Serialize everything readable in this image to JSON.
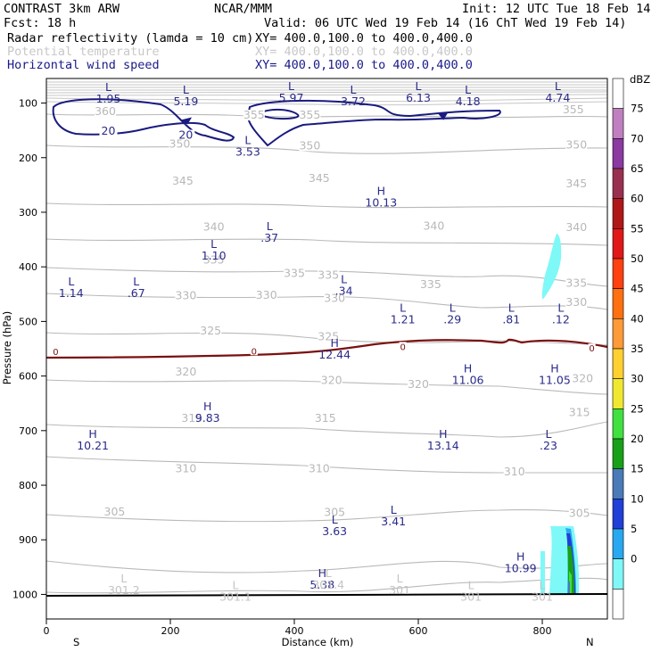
{
  "header": {
    "experiment": "CONTRAST  3km ARW",
    "center": "NCAR/MMM",
    "init": "Init: 12 UTC Tue 18 Feb 14",
    "fcst": "Fcst:    18 h",
    "valid": "Valid: 06 UTC Wed 19 Feb 14 (16 ChT Wed 19 Feb 14)",
    "fields": [
      {
        "name": "Radar reflectivity (lamda = 10 cm)",
        "xy": "XY= 400.0,100.0 to 400.0,400.0",
        "color": "#000000"
      },
      {
        "name": "Potential temperature",
        "xy": "XY= 400.0,100.0 to 400.0,400.0",
        "color": "#c8c8c8"
      },
      {
        "name": "Horizontal wind speed",
        "xy": "XY= 400.0,100.0 to 400.0,400.0",
        "color": "#1a1a8a"
      }
    ]
  },
  "chart_data": {
    "type": "cross-section",
    "xlabel": "Distance (km)",
    "ylabel": "Pressure (hPa)",
    "xlim": [
      0,
      905
    ],
    "ylim": [
      1045,
      55
    ],
    "x_ticks": [
      0,
      200,
      400,
      600,
      800
    ],
    "y_ticks": [
      100,
      200,
      300,
      400,
      500,
      600,
      700,
      800,
      900,
      1000
    ],
    "x_end_labels": {
      "left": "S",
      "right": "N"
    },
    "colorbar": {
      "unit": "dBZ",
      "levels": [
        "75",
        "70",
        "65",
        "60",
        "55",
        "50",
        "45",
        "40",
        "35",
        "30",
        "25",
        "20",
        "15",
        "10",
        "5",
        "0"
      ],
      "colors": [
        "#ffffff",
        "#c080c0",
        "#8a3aa0",
        "#9a3050",
        "#b01818",
        "#e01818",
        "#ff4010",
        "#ff7010",
        "#ff9a38",
        "#ffd030",
        "#f0e830",
        "#40e040",
        "#18a018",
        "#4a7ab8",
        "#2040d8",
        "#28a8f0",
        "#7ff8f8",
        "#ffffff"
      ]
    },
    "theta_levels": [
      {
        "label": "360",
        "x": 95,
        "p": 120
      },
      {
        "label": "355",
        "x": 335,
        "p": 127
      },
      {
        "label": "355",
        "x": 425,
        "p": 127
      },
      {
        "label": "355",
        "x": 850,
        "p": 117
      },
      {
        "label": "350",
        "x": 215,
        "p": 180
      },
      {
        "label": "350",
        "x": 425,
        "p": 183
      },
      {
        "label": "350",
        "x": 855,
        "p": 182
      },
      {
        "label": "345",
        "x": 220,
        "p": 248
      },
      {
        "label": "345",
        "x": 440,
        "p": 243
      },
      {
        "label": "345",
        "x": 855,
        "p": 253
      },
      {
        "label": "340",
        "x": 270,
        "p": 332
      },
      {
        "label": "340",
        "x": 625,
        "p": 330
      },
      {
        "label": "340",
        "x": 855,
        "p": 333
      },
      {
        "label": "335",
        "x": 270,
        "p": 392
      },
      {
        "label": "335",
        "x": 400,
        "p": 417
      },
      {
        "label": "335",
        "x": 455,
        "p": 420
      },
      {
        "label": "335",
        "x": 620,
        "p": 437
      },
      {
        "label": "335",
        "x": 855,
        "p": 435
      },
      {
        "label": "330",
        "x": 225,
        "p": 458
      },
      {
        "label": "330",
        "x": 355,
        "p": 457
      },
      {
        "label": "330",
        "x": 465,
        "p": 463
      },
      {
        "label": "330",
        "x": 855,
        "p": 470
      },
      {
        "label": "325",
        "x": 265,
        "p": 522
      },
      {
        "label": "325",
        "x": 455,
        "p": 533
      },
      {
        "label": "320",
        "x": 225,
        "p": 597
      },
      {
        "label": "320",
        "x": 460,
        "p": 613
      },
      {
        "label": "320",
        "x": 600,
        "p": 620
      },
      {
        "label": "320",
        "x": 865,
        "p": 610
      },
      {
        "label": "315",
        "x": 235,
        "p": 682
      },
      {
        "label": "315",
        "x": 450,
        "p": 682
      },
      {
        "label": "315",
        "x": 860,
        "p": 672
      },
      {
        "label": "310",
        "x": 225,
        "p": 775
      },
      {
        "label": "310",
        "x": 440,
        "p": 775
      },
      {
        "label": "310",
        "x": 755,
        "p": 780
      },
      {
        "label": "305",
        "x": 110,
        "p": 854
      },
      {
        "label": "305",
        "x": 465,
        "p": 855
      },
      {
        "label": "305",
        "x": 860,
        "p": 856
      }
    ],
    "wind_contours": [
      {
        "label": "20",
        "x": 100,
        "p": 155
      },
      {
        "label": "20",
        "x": 225,
        "p": 162
      }
    ],
    "freezing_level_label": "0",
    "extrema": [
      {
        "kind": "L",
        "value": "1.95",
        "x": 100,
        "p": 78,
        "field": "wind"
      },
      {
        "kind": "L",
        "value": "5.19",
        "x": 225,
        "p": 83,
        "field": "wind"
      },
      {
        "kind": "L",
        "value": "5.97",
        "x": 395,
        "p": 76,
        "field": "wind"
      },
      {
        "kind": "L",
        "value": "3.72",
        "x": 495,
        "p": 83,
        "field": "wind"
      },
      {
        "kind": "L",
        "value": "6.13",
        "x": 600,
        "p": 76,
        "field": "wind"
      },
      {
        "kind": "L",
        "value": "4.18",
        "x": 680,
        "p": 83,
        "field": "wind"
      },
      {
        "kind": "L",
        "value": "4.74",
        "x": 825,
        "p": 76,
        "field": "wind"
      },
      {
        "kind": "L",
        "value": "3.53",
        "x": 325,
        "p": 175,
        "field": "wind"
      },
      {
        "kind": "H",
        "value": "10.13",
        "x": 540,
        "p": 268,
        "field": "wind"
      },
      {
        "kind": "L",
        "value": ".37",
        "x": 360,
        "p": 333,
        "field": "wind"
      },
      {
        "kind": "L",
        "value": "1.10",
        "x": 270,
        "p": 365,
        "field": "wind"
      },
      {
        "kind": "L",
        "value": "1.14",
        "x": 40,
        "p": 434,
        "field": "wind"
      },
      {
        "kind": "L",
        "value": ".67",
        "x": 145,
        "p": 434,
        "field": "wind"
      },
      {
        "kind": "L",
        "value": ".34",
        "x": 480,
        "p": 430,
        "field": "wind"
      },
      {
        "kind": "L",
        "value": "1.21",
        "x": 575,
        "p": 482,
        "field": "wind"
      },
      {
        "kind": "L",
        "value": ".29",
        "x": 655,
        "p": 482,
        "field": "wind"
      },
      {
        "kind": "L",
        "value": ".81",
        "x": 750,
        "p": 482,
        "field": "wind"
      },
      {
        "kind": "L",
        "value": ".12",
        "x": 830,
        "p": 482,
        "field": "wind"
      },
      {
        "kind": "H",
        "value": "12.44",
        "x": 465,
        "p": 547,
        "field": "wind"
      },
      {
        "kind": "H",
        "value": "11.06",
        "x": 680,
        "p": 593,
        "field": "wind"
      },
      {
        "kind": "H",
        "value": "11.05",
        "x": 820,
        "p": 593,
        "field": "wind"
      },
      {
        "kind": "H",
        "value": "9.83",
        "x": 260,
        "p": 663,
        "field": "wind"
      },
      {
        "kind": "H",
        "value": "10.21",
        "x": 75,
        "p": 713,
        "field": "wind"
      },
      {
        "kind": "H",
        "value": "13.14",
        "x": 640,
        "p": 713,
        "field": "wind"
      },
      {
        "kind": "L",
        "value": ".23",
        "x": 810,
        "p": 713,
        "field": "wind"
      },
      {
        "kind": "L",
        "value": "3.41",
        "x": 560,
        "p": 852,
        "field": "wind"
      },
      {
        "kind": "L",
        "value": "3.63",
        "x": 465,
        "p": 870,
        "field": "wind"
      },
      {
        "kind": "H",
        "value": "10.99",
        "x": 765,
        "p": 938,
        "field": "wind"
      },
      {
        "kind": "H",
        "value": "5.38",
        "x": 445,
        "p": 968,
        "field": "wind"
      },
      {
        "kind": "L",
        "value": "301.2",
        "x": 125,
        "p": 978,
        "field": "theta"
      },
      {
        "kind": "L",
        "value": "301.1",
        "x": 305,
        "p": 990,
        "field": "theta"
      },
      {
        "kind": "L",
        "value": "301.4",
        "x": 455,
        "p": 968,
        "field": "theta"
      },
      {
        "kind": "L",
        "value": "301",
        "x": 570,
        "p": 978,
        "field": "theta"
      },
      {
        "kind": "L",
        "value": "301",
        "x": 685,
        "p": 990,
        "field": "theta"
      },
      {
        "kind": "L",
        "value": "301",
        "x": 800,
        "p": 990,
        "field": "theta"
      }
    ]
  }
}
